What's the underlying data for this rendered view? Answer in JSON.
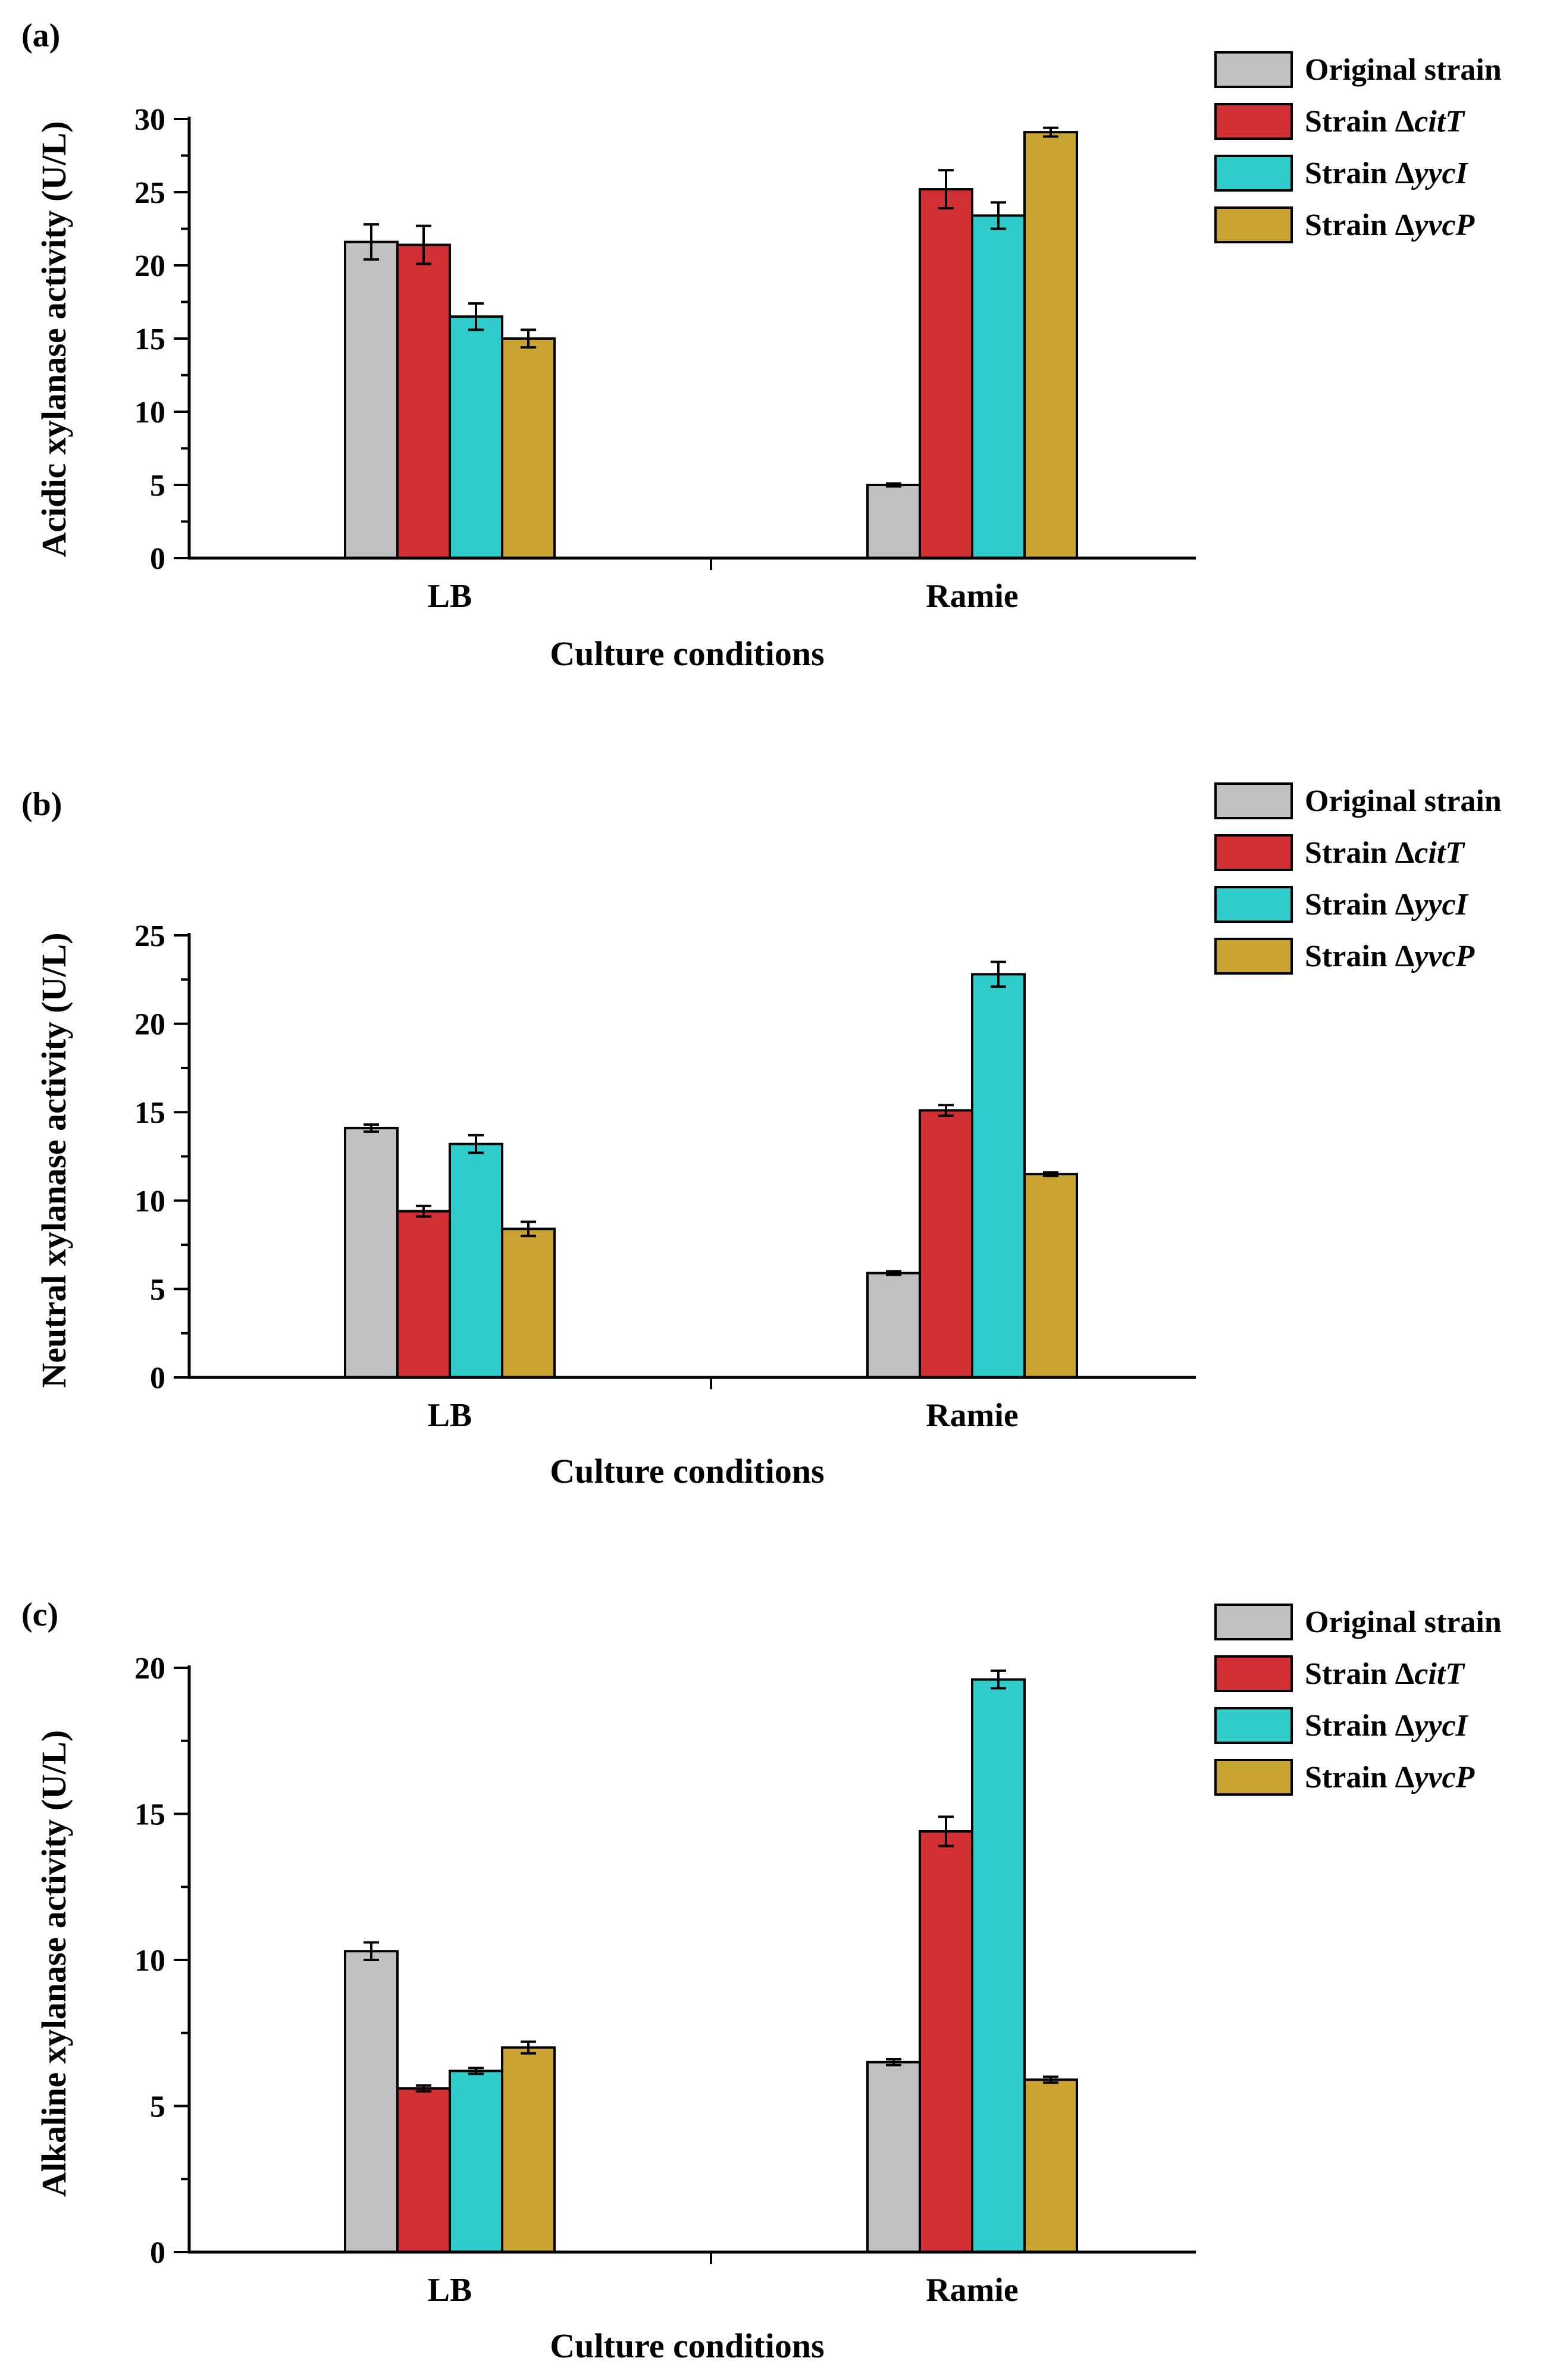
{
  "chart_data": [
    {
      "type": "bar",
      "panel_label": "(a)",
      "title": "",
      "xlabel": "Culture conditions",
      "ylabel": "Acidic xylanase activity (U/L)",
      "ylim": [
        0,
        30
      ],
      "yticks": [
        0,
        5,
        10,
        15,
        20,
        25,
        30
      ],
      "categories": [
        "LB",
        "Ramie"
      ],
      "series": [
        {
          "name": "Original strain",
          "values": [
            21.6,
            5.0
          ],
          "errors": [
            1.2,
            0.1
          ]
        },
        {
          "name": "Strain ΔcitT",
          "values": [
            21.4,
            25.2
          ],
          "errors": [
            1.3,
            1.3
          ]
        },
        {
          "name": "Strain ΔyycI",
          "values": [
            16.5,
            23.4
          ],
          "errors": [
            0.9,
            0.9
          ]
        },
        {
          "name": "Strain ΔyvcP",
          "values": [
            15.0,
            29.1
          ],
          "errors": [
            0.6,
            0.3
          ]
        }
      ],
      "legend_position": "top-right",
      "grid": false
    },
    {
      "type": "bar",
      "panel_label": "(b)",
      "title": "",
      "xlabel": "Culture conditions",
      "ylabel": "Neutral xylanase activity (U/L)",
      "ylim": [
        0,
        25
      ],
      "yticks": [
        0,
        5,
        10,
        15,
        20,
        25
      ],
      "categories": [
        "LB",
        "Ramie"
      ],
      "series": [
        {
          "name": "Original strain",
          "values": [
            14.1,
            5.9
          ],
          "errors": [
            0.2,
            0.1
          ]
        },
        {
          "name": "Strain ΔcitT",
          "values": [
            9.4,
            15.1
          ],
          "errors": [
            0.3,
            0.3
          ]
        },
        {
          "name": "Strain ΔyycI",
          "values": [
            13.2,
            22.8
          ],
          "errors": [
            0.5,
            0.7
          ]
        },
        {
          "name": "Strain ΔyvcP",
          "values": [
            8.4,
            11.5
          ],
          "errors": [
            0.4,
            0.1
          ]
        }
      ],
      "legend_position": "top-right",
      "grid": false
    },
    {
      "type": "bar",
      "panel_label": "(c)",
      "title": "",
      "xlabel": "Culture conditions",
      "ylabel": "Alkaline xylanase activity (U/L)",
      "ylim": [
        0,
        20
      ],
      "yticks": [
        0,
        5,
        10,
        15,
        20
      ],
      "categories": [
        "LB",
        "Ramie"
      ],
      "series": [
        {
          "name": "Original strain",
          "values": [
            10.3,
            6.5
          ],
          "errors": [
            0.3,
            0.1
          ]
        },
        {
          "name": "Strain ΔcitT",
          "values": [
            5.6,
            14.4
          ],
          "errors": [
            0.1,
            0.5
          ]
        },
        {
          "name": "Strain ΔyycI",
          "values": [
            6.2,
            19.6
          ],
          "errors": [
            0.1,
            0.3
          ]
        },
        {
          "name": "Strain ΔyvcP",
          "values": [
            7.0,
            5.9
          ],
          "errors": [
            0.2,
            0.1
          ]
        }
      ],
      "legend_position": "top-right",
      "grid": false
    }
  ],
  "legend": [
    {
      "prefix": "Original strain",
      "italic": "",
      "color": "#c0c0c0"
    },
    {
      "prefix": "Strain Δ",
      "italic": "citT",
      "color": "#d03034"
    },
    {
      "prefix": "Strain Δ",
      "italic": "yycI",
      "color": "#30cccc"
    },
    {
      "prefix": "Strain Δ",
      "italic": "yvcP",
      "color": "#caa432"
    }
  ]
}
